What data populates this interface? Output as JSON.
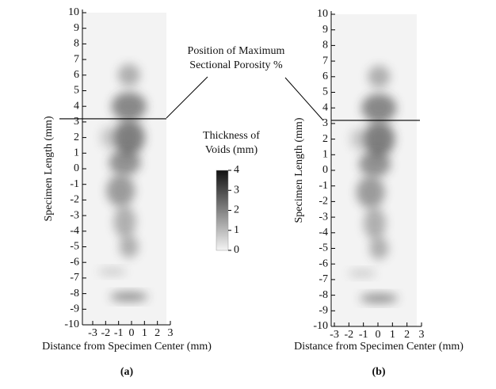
{
  "chart_data": [
    {
      "type": "image",
      "panel": "(a)",
      "xlabel": "Distance from Specimen Center (mm)",
      "ylabel": "Specimen Length (mm)",
      "xlim": [
        -3,
        3
      ],
      "ylim": [
        -10,
        10
      ],
      "xticks": [
        -3,
        -2,
        -1,
        0,
        1,
        2,
        3
      ],
      "yticks": [
        -10,
        -9,
        -8,
        -7,
        -6,
        -5,
        -4,
        -3,
        -2,
        -1,
        0,
        1,
        2,
        3,
        4,
        5,
        6,
        7,
        8,
        9,
        10
      ],
      "max_porosity_position": 3.2
    },
    {
      "type": "image",
      "panel": "(b)",
      "xlabel": "Distance from Specimen Center (mm)",
      "ylabel": "Specimen Length (mm)",
      "xlim": [
        -3,
        3
      ],
      "ylim": [
        -10,
        10
      ],
      "xticks": [
        -3,
        -2,
        -1,
        0,
        1,
        2,
        3
      ],
      "yticks": [
        -10,
        -9,
        -8,
        -7,
        -6,
        -5,
        -4,
        -3,
        -2,
        -1,
        0,
        1,
        2,
        3,
        4,
        5,
        6,
        7,
        8,
        9,
        10
      ],
      "max_porosity_position": 3.2
    }
  ],
  "annotation": [
    "Position of Maximum",
    "Sectional Porosity %"
  ],
  "colorbar": {
    "title": [
      "Thickness of",
      "Voids (mm)"
    ],
    "lim": [
      0,
      4
    ],
    "ticks": [
      0,
      1,
      2,
      3,
      4
    ]
  }
}
